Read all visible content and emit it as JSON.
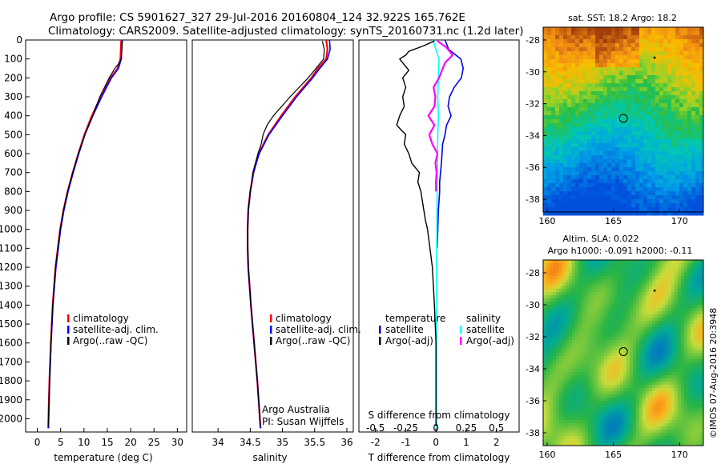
{
  "header": {
    "title_line1": "Argo profile: CS 5901627_327 29-Jul-2016 20160804_124 32.922S 165.762E",
    "title_line2": "Climatology: CARS2009. Satellite-adjusted climatology: synTS_20160731.nc (1.2d later)"
  },
  "colors": {
    "climatology": "#ff0000",
    "satellite": "#0000ff",
    "argo": "#000000",
    "t_satellite": "#0000dd",
    "s_satellite": "#00ffff",
    "s_argo": "#ff00ff"
  },
  "chart_data": [
    {
      "type": "line",
      "panel": "temperature",
      "xlabel": "temperature (deg C)",
      "x_ticks": [
        "0",
        "5",
        "10",
        "15",
        "20",
        "25",
        "30"
      ],
      "y_ticks": [
        "0",
        "100",
        "200",
        "300",
        "400",
        "500",
        "600",
        "700",
        "800",
        "900",
        "1000",
        "1100",
        "1200",
        "1300",
        "1400",
        "1500",
        "1600",
        "1700",
        "1800",
        "1900",
        "2000"
      ],
      "xlim": [
        -2.5,
        32
      ],
      "ylim": [
        0,
        2070
      ],
      "y_inverted": true,
      "legend": [
        "climatology",
        "satellite-adj. clim.",
        "Argo(..raw -QC)"
      ],
      "series": [
        {
          "name": "climatology",
          "color": "climatology",
          "width": 2.2,
          "depth": [
            0,
            100,
            150,
            200,
            300,
            400,
            500,
            600,
            700,
            800,
            900,
            1000,
            1200,
            1400,
            1600,
            1800,
            2000,
            2050
          ],
          "values": [
            18.0,
            17.8,
            17.2,
            15.7,
            13.6,
            11.7,
            10.1,
            8.8,
            7.6,
            6.5,
            5.6,
            4.9,
            3.9,
            3.3,
            2.9,
            2.6,
            2.4,
            2.35
          ]
        },
        {
          "name": "satellite-adj. clim.",
          "color": "satellite",
          "width": 1.6,
          "depth": [
            0,
            100,
            150,
            200,
            300,
            400,
            500,
            600,
            700,
            800,
            900,
            1000,
            1200,
            1400,
            1600,
            1800,
            2000,
            2050
          ],
          "values": [
            18.2,
            18.0,
            17.4,
            15.9,
            13.8,
            11.9,
            10.2,
            8.9,
            7.7,
            6.6,
            5.7,
            5.0,
            4.0,
            3.35,
            2.95,
            2.65,
            2.45,
            2.4
          ]
        },
        {
          "name": "Argo(..raw -QC)",
          "color": "argo",
          "width": 1.2,
          "depth": [
            5,
            50,
            100,
            120,
            150,
            200,
            250,
            300,
            350,
            400,
            450,
            500,
            600,
            700,
            800,
            900,
            1000,
            1200,
            1400,
            1600,
            1800,
            2000,
            2040
          ],
          "values": [
            18.2,
            18.1,
            18.0,
            17.6,
            16.6,
            15.4,
            14.4,
            13.4,
            12.6,
            11.9,
            11.0,
            10.2,
            8.8,
            7.6,
            6.5,
            5.6,
            4.9,
            3.9,
            3.3,
            2.9,
            2.6,
            2.4,
            2.35
          ]
        }
      ]
    },
    {
      "type": "line",
      "panel": "salinity",
      "xlabel": "salinity",
      "x_ticks": [
        "34",
        "34.5",
        "35",
        "35.5",
        "36"
      ],
      "y_ticks": [],
      "xlim": [
        33.6,
        36.1
      ],
      "ylim": [
        0,
        2070
      ],
      "y_inverted": true,
      "legend": [
        "climatology",
        "satellite-adj. clim.",
        "Argo(..raw -QC)"
      ],
      "annotation": [
        "Argo Australia",
        "PI: Susan Wijffels"
      ],
      "series": [
        {
          "name": "climatology",
          "color": "climatology",
          "width": 2.2,
          "depth": [
            0,
            50,
            100,
            150,
            200,
            300,
            400,
            500,
            600,
            700,
            800,
            900,
            1000,
            1100,
            1200,
            1400,
            1600,
            1800,
            2000,
            2050
          ],
          "values": [
            35.68,
            35.7,
            35.68,
            35.55,
            35.45,
            35.2,
            34.98,
            34.78,
            34.63,
            34.55,
            34.5,
            34.47,
            34.46,
            34.46,
            34.47,
            34.51,
            34.56,
            34.61,
            34.65,
            34.66
          ]
        },
        {
          "name": "satellite-adj. clim.",
          "color": "satellite",
          "width": 1.6,
          "depth": [
            0,
            50,
            100,
            150,
            200,
            300,
            400,
            500,
            600,
            700,
            800,
            900,
            1000,
            1100,
            1200,
            1400,
            1600,
            1800,
            2000,
            2050
          ],
          "values": [
            35.73,
            35.74,
            35.7,
            35.58,
            35.47,
            35.22,
            35.0,
            34.79,
            34.64,
            34.55,
            34.5,
            34.47,
            34.46,
            34.46,
            34.47,
            34.51,
            34.56,
            34.61,
            34.65,
            34.66
          ]
        },
        {
          "name": "Argo(..raw -QC)",
          "color": "argo",
          "width": 1.2,
          "depth": [
            5,
            50,
            100,
            150,
            200,
            300,
            400,
            450,
            500,
            550,
            600,
            700,
            800,
            900,
            1000,
            1200,
            1400,
            1600,
            1800,
            2000,
            2040
          ],
          "values": [
            35.62,
            35.65,
            35.64,
            35.52,
            35.4,
            35.12,
            34.86,
            34.76,
            34.7,
            34.67,
            34.62,
            34.54,
            34.5,
            34.47,
            34.46,
            34.47,
            34.51,
            34.56,
            34.61,
            34.65,
            34.66
          ]
        }
      ]
    },
    {
      "type": "line",
      "panel": "difference",
      "xlabel_top": "S difference from climatology",
      "xlabel": "T difference from climatology",
      "x_ticks": [
        "-2",
        "-1",
        "0",
        "1",
        "2"
      ],
      "x_ticks_top": [
        "-0.5",
        "-0.25",
        "0",
        "0.25",
        "0.5"
      ],
      "y_ticks": [],
      "xlim": [
        -2.55,
        2.75
      ],
      "ylim": [
        0,
        2070
      ],
      "y_inverted": true,
      "legend_groups": [
        {
          "title": "temperature",
          "items": [
            "satellite",
            "Argo(-adj)"
          ]
        },
        {
          "title": "salinity",
          "items": [
            "satellite",
            "Argo(-adj)"
          ]
        }
      ],
      "series": [
        {
          "name": "T satellite",
          "color": "t_satellite",
          "width": 1.6,
          "depth": [
            0,
            50,
            100,
            150,
            200,
            250,
            300,
            350,
            400,
            450,
            500,
            550,
            600,
            650,
            700,
            750,
            800,
            900,
            1000,
            1100
          ],
          "values": [
            0.3,
            0.42,
            0.82,
            0.9,
            0.84,
            0.6,
            0.45,
            0.4,
            0.5,
            0.35,
            0.3,
            0.22,
            0.2,
            0.18,
            0.15,
            0.12,
            0.12,
            0.08,
            0.06,
            0.04
          ]
        },
        {
          "name": "S satellite",
          "color": "s_satellite",
          "width": 1.6,
          "depth": [
            0,
            50,
            100,
            200,
            300,
            400,
            500,
            600,
            800,
            1000,
            1200,
            1500,
            1800,
            2050
          ],
          "values": [
            -0.1,
            0.0,
            0.1,
            0.08,
            0.06,
            0.08,
            0.06,
            0.05,
            0.04,
            0.03,
            0.02,
            0.02,
            0.02,
            0.02
          ]
        },
        {
          "name": "T Argo(-adj)",
          "color": "argo",
          "width": 1.4,
          "depth": [
            5,
            30,
            60,
            80,
            100,
            130,
            160,
            200,
            250,
            300,
            350,
            400,
            450,
            500,
            550,
            600,
            650,
            700,
            750,
            800,
            850,
            900,
            950,
            1000,
            1100,
            1200,
            1400,
            1600,
            1800,
            2000,
            2040
          ],
          "values": [
            -0.05,
            -0.4,
            -0.9,
            -1.0,
            -1.2,
            -1.05,
            -0.9,
            -1.1,
            -1.0,
            -1.1,
            -1.05,
            -1.2,
            -1.3,
            -1.0,
            -1.05,
            -0.9,
            -0.8,
            -0.55,
            -0.6,
            -0.5,
            -0.45,
            -0.4,
            -0.35,
            -0.28,
            -0.2,
            -0.12,
            -0.05,
            0.0,
            0.0,
            0.0,
            0.0
          ]
        },
        {
          "name": "S Argo(-adj)",
          "color": "s_argo",
          "width": 2.2,
          "depth": [
            5,
            40,
            80,
            120,
            160,
            200,
            250,
            300,
            350,
            400,
            450,
            500,
            550,
            600,
            650,
            700,
            750,
            800
          ],
          "values": [
            0.05,
            0.35,
            0.55,
            0.3,
            0.2,
            0.1,
            -0.08,
            -0.02,
            -0.05,
            -0.25,
            -0.05,
            -0.22,
            -0.12,
            0.05,
            -0.02,
            0.02,
            0.0,
            0.0
          ]
        }
      ]
    },
    {
      "type": "heatmap",
      "panel": "sst_map",
      "title": "sat. SST: 18.2 Argo: 18.2",
      "x_ticks": [
        "160",
        "165",
        "170"
      ],
      "y_ticks": [
        "-28",
        "-30",
        "-32",
        "-34",
        "-36",
        "-38"
      ],
      "xlim": [
        159.7,
        171.8
      ],
      "ylim": [
        -38.8,
        -27.2
      ],
      "marker": {
        "lon": 165.762,
        "lat": -32.922
      }
    },
    {
      "type": "heatmap",
      "panel": "sla_map",
      "title_line1": "Altim. SLA: 0.022",
      "title_line2": "Argo h1000: -0.091 h2000: -0.11",
      "x_ticks": [
        "160",
        "165",
        "170"
      ],
      "y_ticks": [
        "-28",
        "-30",
        "-32",
        "-34",
        "-36",
        "-38"
      ],
      "xlim": [
        159.7,
        171.8
      ],
      "ylim": [
        -38.8,
        -27.2
      ],
      "marker": {
        "lon": 165.762,
        "lat": -32.922
      }
    }
  ],
  "credit": "©IMOS 07-Aug-2016 20:3948"
}
